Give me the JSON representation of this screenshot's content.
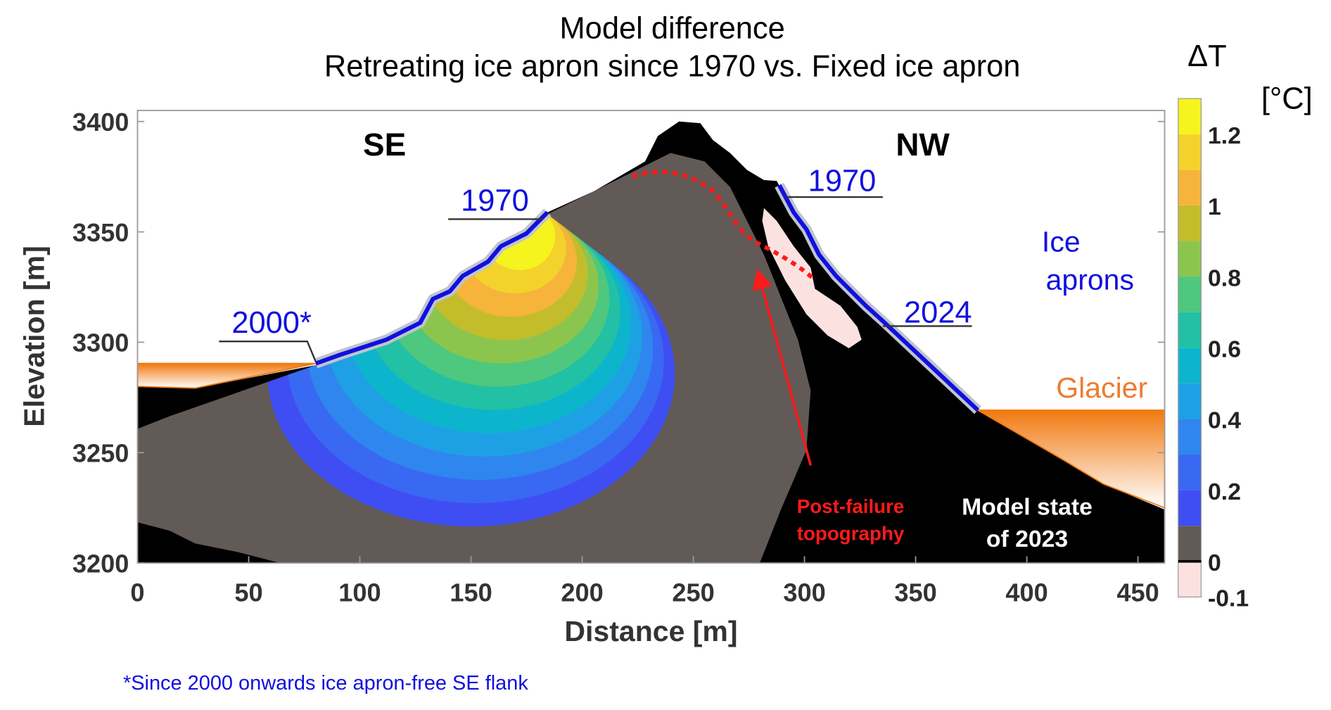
{
  "chart_data": {
    "type": "contour",
    "title": [
      "Model difference",
      "Retreating ice apron since 1970 vs. Fixed ice apron"
    ],
    "xlabel": "Distance [m]",
    "ylabel": "Elevation [m]",
    "xlim": [
      0,
      462
    ],
    "ylim": [
      3200,
      3405
    ],
    "xticks": [
      0,
      50,
      100,
      150,
      200,
      250,
      300,
      350,
      400,
      450
    ],
    "yticks": [
      3200,
      3250,
      3300,
      3350,
      3400
    ],
    "colorbar": {
      "label": "ΔT",
      "unit": "[°C]",
      "lim": [
        -0.1,
        1.3
      ],
      "levels": [
        -0.1,
        0,
        0.1,
        0.2,
        0.3,
        0.4,
        0.5,
        0.6,
        0.7,
        0.8,
        0.9,
        1,
        1.1,
        1.2,
        1.3
      ],
      "colors": [
        "#fbe2e0",
        "#625a56",
        "#3f4ef2",
        "#3968f2",
        "#2f86ee",
        "#1ea0e4",
        "#0cb5cc",
        "#22c0a4",
        "#4ec87e",
        "#8cc54e",
        "#c3bd2c",
        "#f6b43a",
        "#f4d22c",
        "#f6f41e"
      ],
      "ticks": [
        -0.1,
        0,
        0.2,
        0.4,
        0.6,
        0.8,
        1,
        1.2
      ]
    },
    "annotations": {
      "se": "SE",
      "nw": "NW",
      "se_1970": "1970",
      "se_2000": "2000*",
      "nw_1970": "1970",
      "nw_2024": "2024",
      "ice_aprons": [
        "Ice",
        "aprons"
      ],
      "glacier": "Glacier",
      "post_failure": [
        "Post-failure",
        "topography"
      ],
      "model_state": [
        "Model state",
        "of 2023"
      ]
    },
    "footnote": "*Since 2000 onwards ice apron-free SE flank"
  }
}
